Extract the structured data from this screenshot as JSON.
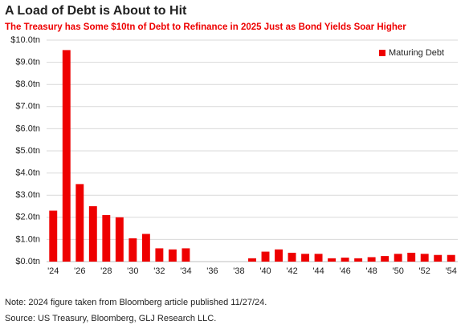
{
  "chart_data": {
    "type": "bar",
    "title": "A Load of Debt is About to Hit",
    "subtitle": "The Treasury has Some $10tn of Debt to Refinance in 2025 Just as Bond Yields Soar Higher",
    "categories": [
      "'24",
      null,
      "'26",
      null,
      "'28",
      null,
      "'30",
      null,
      "'32",
      null,
      "'34",
      null,
      "'36",
      null,
      "'38",
      null,
      "'40",
      null,
      "'42",
      null,
      "'44",
      null,
      "'46",
      null,
      "'48",
      null,
      "'50",
      null,
      "'52",
      null,
      "'54"
    ],
    "series": [
      {
        "name": "Maturing Debt",
        "color": "#ee0000",
        "values": [
          2.3,
          9.55,
          3.5,
          2.5,
          2.1,
          2.0,
          1.05,
          1.25,
          0.6,
          0.55,
          0.6,
          0,
          0,
          0,
          0,
          0.15,
          0.45,
          0.55,
          0.4,
          0.35,
          0.35,
          0.15,
          0.18,
          0.15,
          0.2,
          0.25,
          0.35,
          0.4,
          0.35,
          0.3,
          0.3
        ]
      }
    ],
    "ylim": [
      0,
      10
    ],
    "yticks": [
      {
        "value": 0,
        "label": "$0.0tn"
      },
      {
        "value": 1,
        "label": "$1.0tn"
      },
      {
        "value": 2,
        "label": "$2.0tn"
      },
      {
        "value": 3,
        "label": "$3.0tn"
      },
      {
        "value": 4,
        "label": "$4.0tn"
      },
      {
        "value": 5,
        "label": "$5.0tn"
      },
      {
        "value": 6,
        "label": "$6.0tn"
      },
      {
        "value": 7,
        "label": "$7.0tn"
      },
      {
        "value": 8,
        "label": "$8.0tn"
      },
      {
        "value": 9,
        "label": "$9.0tn"
      },
      {
        "value": 10,
        "label": "$10.0tn"
      }
    ],
    "grid": true,
    "legend": "top-right",
    "note": "Note: 2024 figure taken from Bloomberg article published 11/27/24.",
    "source": "Source: US Treasury, Bloomberg, GLJ Research LLC."
  }
}
